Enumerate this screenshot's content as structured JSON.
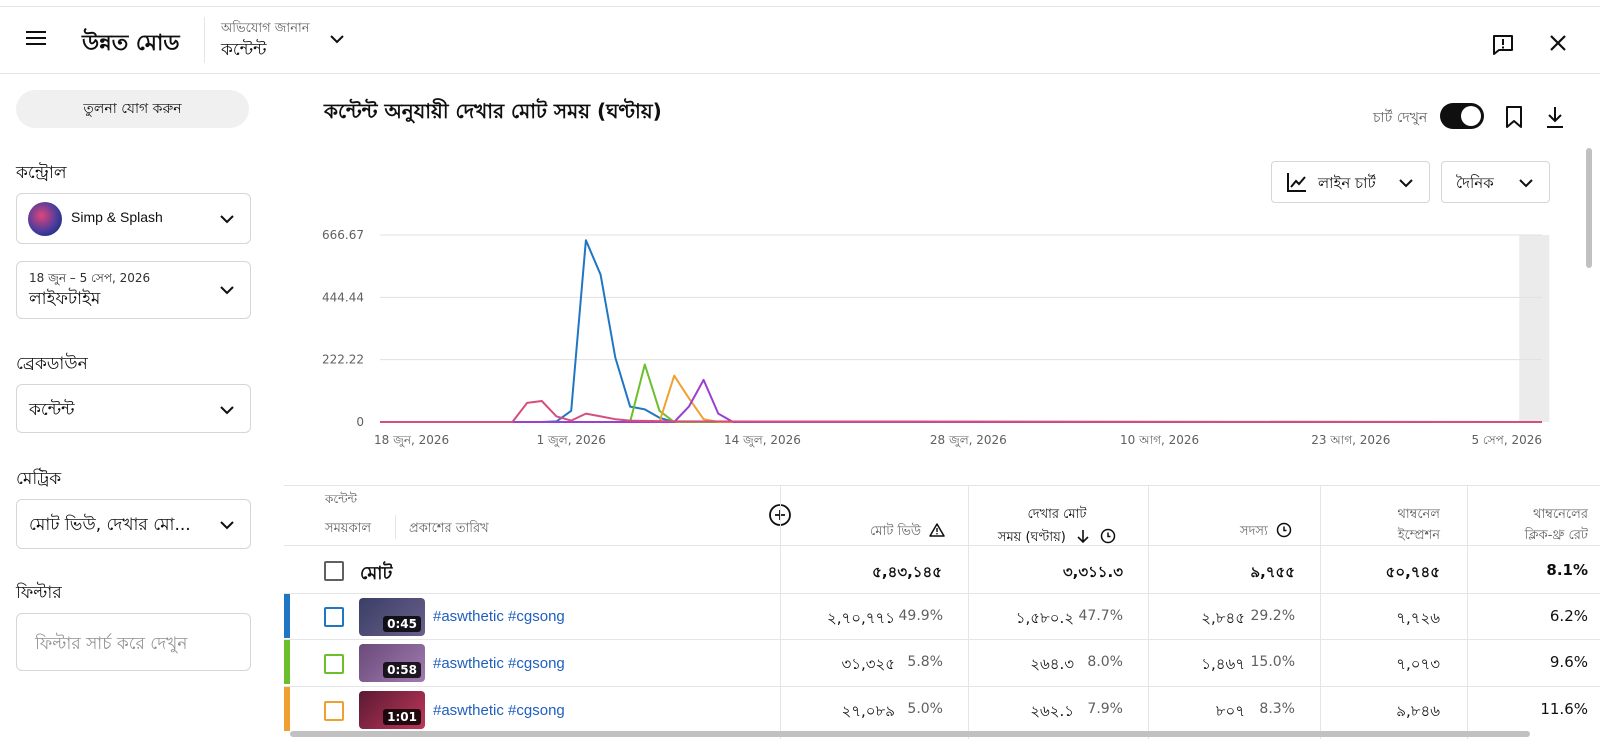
{
  "header": {
    "app_title": "উন্নত মোড",
    "feedback_label": "অভিযোগ জানান",
    "content_label": "কন্টেন্ট"
  },
  "sidebar": {
    "compare_button": "তুলনা যোগ করুন",
    "control_label": "কন্ট্রোল",
    "channel_name": "Simp & Splash",
    "date_range": "18 জুন – 5 সেপ, 2026",
    "date_period": "লাইফটাইম",
    "breakdown_label": "ব্রেকডাউন",
    "breakdown_value": "কন্টেন্ট",
    "metric_label": "মেট্রিক",
    "metric_value": "মোট ভিউ, দেখার মো...",
    "filter_label": "ফিল্টার",
    "filter_placeholder": "ফিল্টার সার্চ করে দেখুন"
  },
  "main": {
    "chart_title": "কন্টেন্ট অনুযায়ী দেখার মোট সময় (ঘণ্টায়)",
    "show_chart_label": "চার্ট দেখুন",
    "chart_type_label": "লাইন চার্ট",
    "interval_label": "দৈনিক"
  },
  "colors": {
    "series_blue": "#1f77c4",
    "series_green": "#6bbf2c",
    "series_orange": "#f0a030",
    "series_purple": "#9c3fd0",
    "series_pink": "#d44f7c",
    "link_blue": "#1f5fbf"
  },
  "chart_data": {
    "type": "line",
    "y_ticks": [
      "0",
      "222.22",
      "444.44",
      "666.67"
    ],
    "ylim": [
      0,
      666.67
    ],
    "x_ticks": [
      "18 জুন, 2026",
      "1 জুল, 2026",
      "14 জুল, 2026",
      "28 জুল, 2026",
      "10 আগ, 2026",
      "23 আগ, 2026",
      "5 সেপ, 2026"
    ],
    "x_tick_days": [
      0,
      13,
      26,
      40,
      53,
      66,
      79
    ],
    "highlight_range_days": [
      78,
      80
    ],
    "series": [
      {
        "color": "#1f77c4",
        "points": [
          [
            0,
            0
          ],
          [
            11,
            0
          ],
          [
            12,
            2
          ],
          [
            13,
            40
          ],
          [
            14,
            648
          ],
          [
            15,
            525
          ],
          [
            16,
            230
          ],
          [
            17,
            55
          ],
          [
            18,
            45
          ],
          [
            19,
            15
          ],
          [
            20,
            0
          ],
          [
            79,
            0
          ]
        ]
      },
      {
        "color": "#6bbf2c",
        "points": [
          [
            0,
            0
          ],
          [
            17,
            0
          ],
          [
            18,
            205
          ],
          [
            19,
            40
          ],
          [
            20,
            0
          ],
          [
            79,
            0
          ]
        ]
      },
      {
        "color": "#f0a030",
        "points": [
          [
            0,
            0
          ],
          [
            19,
            0
          ],
          [
            20,
            165
          ],
          [
            21,
            85
          ],
          [
            22,
            10
          ],
          [
            23,
            0
          ],
          [
            79,
            0
          ]
        ]
      },
      {
        "color": "#9c3fd0",
        "points": [
          [
            0,
            0
          ],
          [
            20,
            0
          ],
          [
            21,
            55
          ],
          [
            22,
            150
          ],
          [
            23,
            30
          ],
          [
            24,
            0
          ],
          [
            79,
            0
          ]
        ]
      },
      {
        "color": "#d44f7c",
        "points": [
          [
            0,
            0
          ],
          [
            9,
            0
          ],
          [
            10,
            68
          ],
          [
            11,
            75
          ],
          [
            12,
            20
          ],
          [
            13,
            5
          ],
          [
            14,
            30
          ],
          [
            15,
            20
          ],
          [
            16,
            10
          ],
          [
            17,
            5
          ],
          [
            20,
            2
          ],
          [
            79,
            0
          ]
        ]
      }
    ]
  },
  "table": {
    "header": {
      "content": "কন্টেন্ট",
      "period": "সময়কাল",
      "publish_date": "প্রকাশের তারিখ",
      "total_views": "মোট ভিউ",
      "watch_time_1": "দেখার মোট",
      "watch_time_2": "সময় (ঘণ্টায়)",
      "subscribers": "সদস্য",
      "impressions_1": "থাম্বনেল",
      "impressions_2": "ইম্প্রেশন",
      "ctr_1": "থাম্বনেলের",
      "ctr_2": "ক্লিক-থ্রু রেট"
    },
    "total": {
      "label": "মোট",
      "views": "৫,৪৩,১৪৫",
      "watch": "৩,৩১১.৩",
      "subs": "৯,৭৫৫",
      "impressions": "৫০,৭৪৫",
      "ctr": "8.1%"
    },
    "rows": [
      {
        "duration": "0:45",
        "title": "#aswthetic #cgsong",
        "views": "২,৭০,৭৭১",
        "views_pct": "49.9%",
        "watch": "১,৫৮০.২",
        "watch_pct": "47.7%",
        "subs": "২,৮৪৫",
        "subs_pct": "29.2%",
        "impressions": "৭,৭২৬",
        "ctr": "6.2%"
      },
      {
        "duration": "0:58",
        "title": "#aswthetic #cgsong",
        "views": "৩১,৩২৫",
        "views_pct": "5.8%",
        "watch": "২৬৪.৩",
        "watch_pct": "8.0%",
        "subs": "১,৪৬৭",
        "subs_pct": "15.0%",
        "impressions": "৭,০৭৩",
        "ctr": "9.6%"
      },
      {
        "duration": "1:01",
        "title": "#aswthetic #cgsong",
        "views": "২৭,০৮৯",
        "views_pct": "5.0%",
        "watch": "২৬২.১",
        "watch_pct": "7.9%",
        "subs": "৮০৭",
        "subs_pct": "8.3%",
        "impressions": "৯,৮৪৬",
        "ctr": "11.6%"
      }
    ]
  }
}
